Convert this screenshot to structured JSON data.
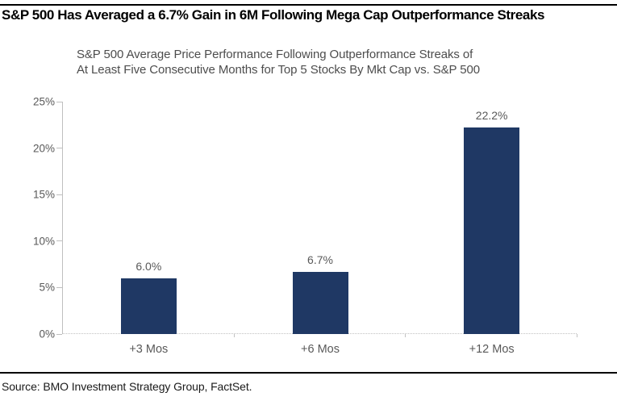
{
  "header": {
    "title": "S&P 500 Has Averaged a 6.7% Gain in 6M Following Mega Cap Outperformance Streaks"
  },
  "chart": {
    "title_line1": "S&P 500 Average Price Performance Following Outperformance Streaks of",
    "title_line2": "At Least Five Consecutive Months for Top 5 Stocks By Mkt Cap vs. S&P 500"
  },
  "chart_data": {
    "type": "bar",
    "title": "S&P 500 Average Price Performance Following Outperformance Streaks of At Least Five Consecutive Months for Top 5 Stocks By Mkt Cap vs. S&P 500",
    "categories": [
      "+3 Mos",
      "+6 Mos",
      "+12 Mos"
    ],
    "values": [
      6.0,
      6.7,
      22.2
    ],
    "value_labels": [
      "6.0%",
      "6.7%",
      "22.2%"
    ],
    "xlabel": "",
    "ylabel": "",
    "ylim": [
      0,
      25
    ],
    "y_ticks": [
      0,
      5,
      10,
      15,
      20,
      25
    ],
    "y_tick_labels": [
      "0%",
      "5%",
      "10%",
      "15%",
      "20%",
      "25%"
    ],
    "grid": false,
    "legend": null,
    "bar_color": "#1F3864"
  },
  "footer": {
    "source": "Source: BMO Investment Strategy Group, FactSet."
  },
  "colors": {
    "bar": "#1F3864",
    "axis": "#BFBFBF",
    "axis_label": "#595959",
    "chart_title": "#4D4D4D",
    "rule": "#000000",
    "text": "#1A1A1A"
  }
}
